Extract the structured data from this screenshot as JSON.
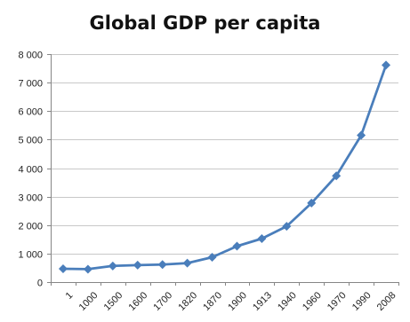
{
  "chart_data": {
    "type": "line",
    "title": "Global GDP per capita",
    "xlabel": "",
    "ylabel": "",
    "categories": [
      "1",
      "1000",
      "1500",
      "1600",
      "1700",
      "1820",
      "1870",
      "1900",
      "1913",
      "1940",
      "1960",
      "1970",
      "1990",
      "2008"
    ],
    "series": [
      {
        "values": [
          467,
          453,
          566,
          596,
          616,
          667,
          873,
          1262,
          1526,
          1958,
          2773,
          3729,
          5150,
          7614
        ]
      }
    ],
    "ylim": [
      0,
      8000
    ],
    "yticks": [
      0,
      1000,
      2000,
      3000,
      4000,
      5000,
      6000,
      7000,
      8000
    ],
    "ytick_labels": [
      "0",
      "1 000",
      "2 000",
      "3 000",
      "4 000",
      "5 000",
      "6 000",
      "7 000",
      "8 000"
    ],
    "grid": "horizontal",
    "legend": "none",
    "colors": {
      "line": "#4a7ebb",
      "marker": "#4a7ebb",
      "grid": "#c8c8c8",
      "axis": "#868686",
      "text": "#222222"
    }
  }
}
